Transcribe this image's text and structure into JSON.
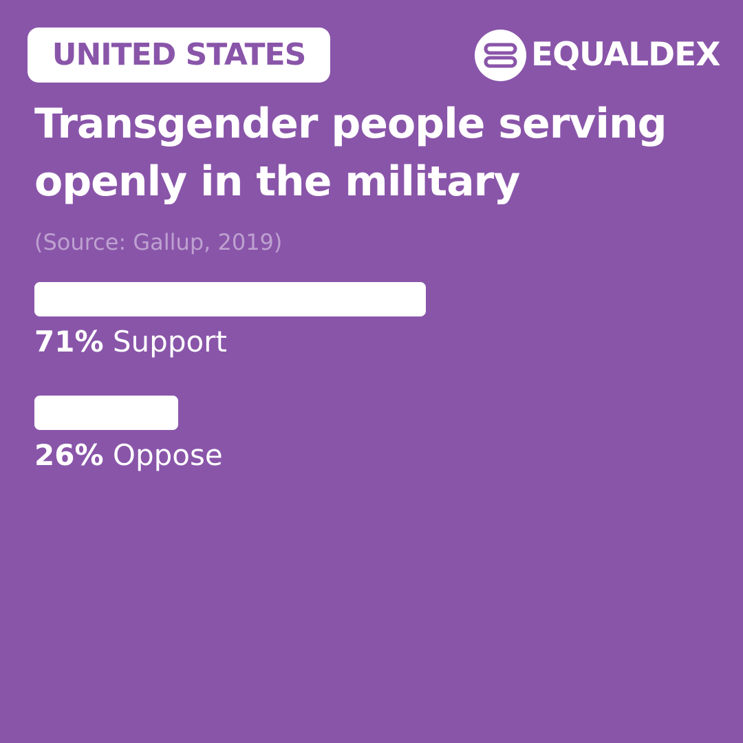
{
  "header": {
    "region": "UNITED STATES",
    "brand": "EQUALDEX"
  },
  "chart_data": {
    "type": "bar",
    "title": "Transgender people serving openly in the military",
    "subtitle": "(Source: Gallup, 2019)",
    "categories": [
      "Support",
      "Oppose"
    ],
    "values": [
      71,
      26
    ],
    "value_labels": [
      "71%",
      "26%"
    ],
    "color": "#ffffff"
  }
}
